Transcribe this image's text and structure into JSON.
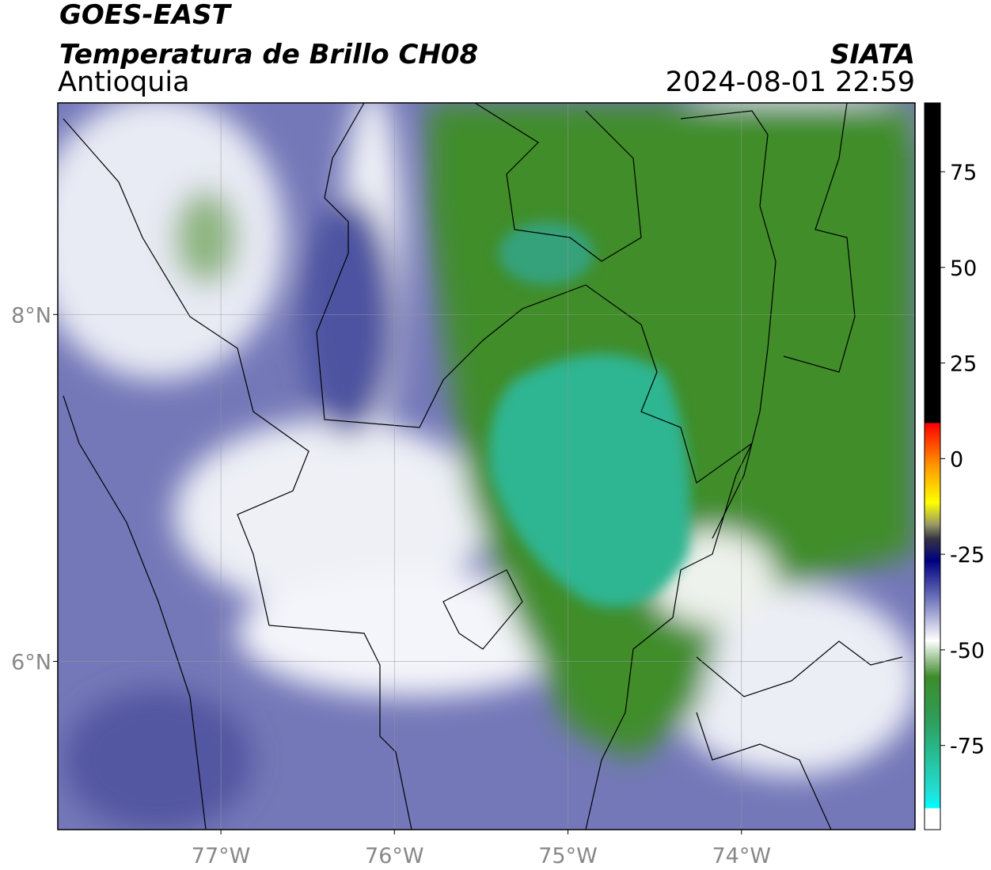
{
  "header": {
    "title": "GOES-EAST",
    "subtitle": "Temperatura de Brillo CH08",
    "region": "Antioquia",
    "source": "SIATA",
    "datetime": "2024-08-01 22:59"
  },
  "map": {
    "xlim": [
      -77.94,
      -73.0
    ],
    "ylim": [
      5.03,
      9.22
    ],
    "xticks": [
      {
        "value": -77,
        "label": "77°W"
      },
      {
        "value": -76,
        "label": "76°W"
      },
      {
        "value": -75,
        "label": "75°W"
      },
      {
        "value": -74,
        "label": "74°W"
      }
    ],
    "yticks": [
      {
        "value": 8,
        "label": "8°N"
      },
      {
        "value": 6,
        "label": "6°N"
      }
    ],
    "grid": true
  },
  "colorbar": {
    "lim": [
      -97,
      93
    ],
    "ticks": [
      75,
      50,
      25,
      0,
      -25,
      -50,
      -75
    ]
  }
}
